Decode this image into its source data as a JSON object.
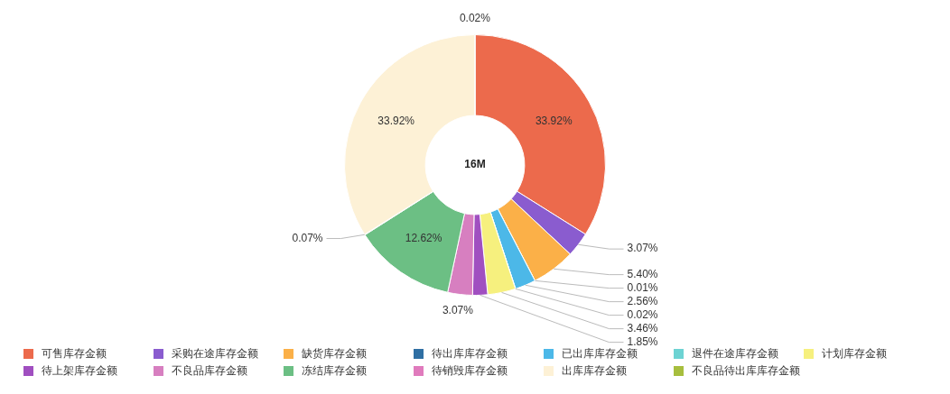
{
  "chart_data": {
    "type": "donut",
    "categories": [
      "可售库存金额",
      "采购在途库存金额",
      "缺货库存金额",
      "待出库库存金额",
      "已出库库存金额",
      "退件在途库存金额",
      "计划库存金额",
      "待上架库存金额",
      "不良品库存金额",
      "冻结库存金额",
      "待销毁库存金额",
      "出库库存金额",
      "不良品待出库库存金额"
    ],
    "values": [
      33.92,
      3.07,
      5.4,
      0.01,
      2.56,
      0.02,
      3.46,
      1.85,
      3.07,
      12.62,
      0.07,
      33.92,
      0.02
    ],
    "value_labels": [
      "33.92%",
      "3.07%",
      "5.40%",
      "0.01%",
      "2.56%",
      "0.02%",
      "3.46%",
      "1.85%",
      "3.07%",
      "12.62%",
      "0.07%",
      "33.92%",
      "0.02%"
    ],
    "colors": [
      "#ec6a4c",
      "#8a5ccf",
      "#fbb048",
      "#2f6fa3",
      "#4cb8e8",
      "#6dd3d3",
      "#f6f07e",
      "#a04fc0",
      "#d77fc0",
      "#6cbf84",
      "#e07bbd",
      "#fdf1d6",
      "#a7be3e"
    ],
    "annotations": [
      "16M"
    ],
    "legend": "bottom"
  }
}
